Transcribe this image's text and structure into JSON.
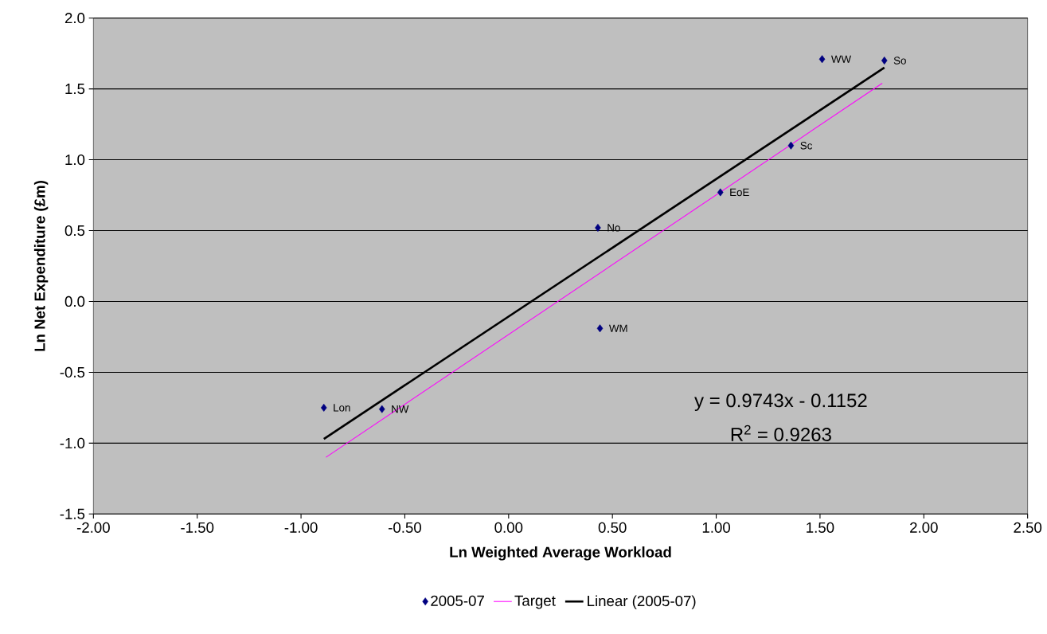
{
  "chart_data": {
    "type": "scatter",
    "xlabel": "Ln Weighted Average Workload",
    "ylabel": "Ln Net Expenditure (£m)",
    "xlim": [
      -2,
      2.5
    ],
    "ylim": [
      -1.5,
      2
    ],
    "xticks": [
      {
        "value": -2,
        "label": "-2.00"
      },
      {
        "value": -1.5,
        "label": "-1.50"
      },
      {
        "value": -1,
        "label": "-1.00"
      },
      {
        "value": -0.5,
        "label": "-0.50"
      },
      {
        "value": 0,
        "label": "0.00"
      },
      {
        "value": 0.5,
        "label": "0.50"
      },
      {
        "value": 1,
        "label": "1.00"
      },
      {
        "value": 1.5,
        "label": "1.50"
      },
      {
        "value": 2,
        "label": "2.00"
      },
      {
        "value": 2.5,
        "label": "2.50"
      }
    ],
    "yticks": [
      {
        "value": -1.5,
        "label": "-1.5"
      },
      {
        "value": -1,
        "label": "-1.0"
      },
      {
        "value": -0.5,
        "label": "-0.5"
      },
      {
        "value": 0,
        "label": "0.0"
      },
      {
        "value": 0.5,
        "label": "0.5"
      },
      {
        "value": 1,
        "label": "1.0"
      },
      {
        "value": 1.5,
        "label": "1.5"
      },
      {
        "value": 2,
        "label": "2.0"
      }
    ],
    "grid": "y",
    "legend": "bottom",
    "series": [
      {
        "name": "2005-07",
        "marker": "diamond",
        "color": "#000080",
        "x": [
          1.51,
          1.81,
          1.36,
          1.02,
          0.43,
          0.44,
          -0.89,
          -0.61
        ],
        "values": [
          1.71,
          1.7,
          1.1,
          0.77,
          0.52,
          -0.19,
          -0.75,
          -0.76
        ]
      },
      {
        "name": "Target",
        "type": "line",
        "marker": "none",
        "color": "#ff00ff",
        "x": [
          -0.88,
          1.8
        ],
        "values": [
          -1.1,
          1.54
        ]
      },
      {
        "name": "Linear (2005-07)",
        "type": "line",
        "marker": "none",
        "color": "#000000",
        "x": [
          -0.89,
          1.81
        ],
        "values": [
          -0.97,
          1.65
        ]
      }
    ],
    "annotations": [
      {
        "text": "WW",
        "x": 1.51,
        "y": 1.71
      },
      {
        "text": "So",
        "x": 1.81,
        "y": 1.7
      },
      {
        "text": "Sc",
        "x": 1.36,
        "y": 1.1
      },
      {
        "text": "EoE",
        "x": 1.02,
        "y": 0.77
      },
      {
        "text": "No",
        "x": 0.43,
        "y": 0.52
      },
      {
        "text": "WM",
        "x": 0.44,
        "y": -0.19
      },
      {
        "text": "Lon",
        "x": -0.89,
        "y": -0.75
      },
      {
        "text": "NW",
        "x": -0.61,
        "y": -0.76
      },
      "y = 0.9743x - 0.1152",
      "R$^{2}$ = 0.9263"
    ]
  }
}
